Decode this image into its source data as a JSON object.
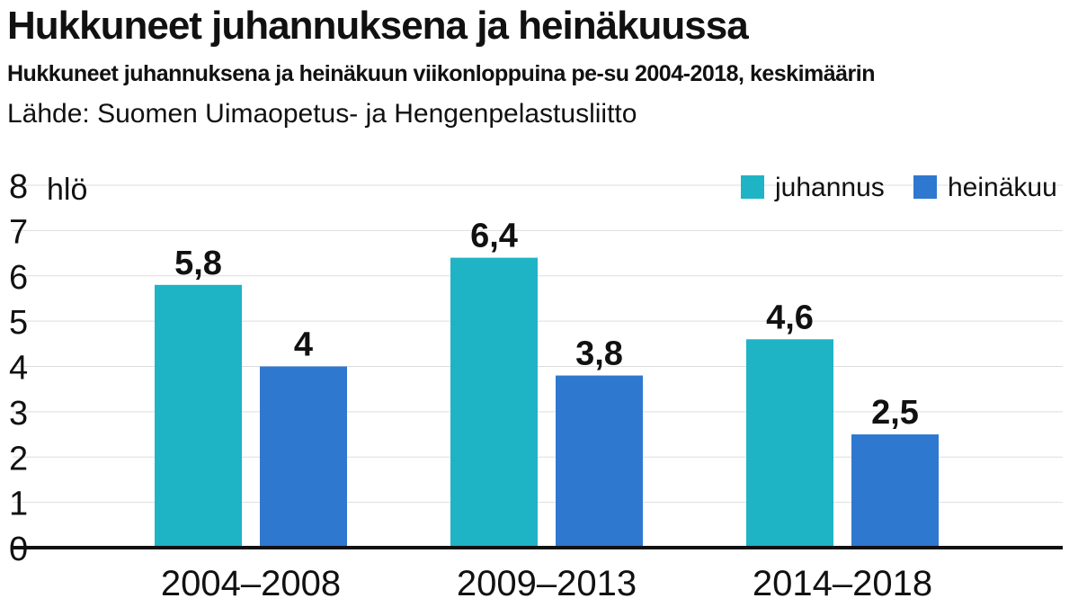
{
  "chart_data": {
    "type": "bar",
    "title": "Hukkuneet juhannuksena ja heinäkuussa",
    "subtitle": "Hukkuneet juhannuksena ja heinäkuun viikonloppuina pe-su 2004-2018, keskimäärin",
    "source": "Lähde: Suomen Uimaopetus- ja Hengenpelastusliitto",
    "ylabel": "hlö",
    "xlabel": "",
    "ylim": [
      0,
      8
    ],
    "yticks": [
      0,
      1,
      2,
      3,
      4,
      5,
      6,
      7,
      8
    ],
    "categories": [
      "2004–2008",
      "2009–2013",
      "2014–2018"
    ],
    "series": [
      {
        "name": "juhannus",
        "color": "#1fb3c6",
        "values": [
          5.8,
          6.4,
          4.6
        ],
        "labels": [
          "5,8",
          "6,4",
          "4,6"
        ]
      },
      {
        "name": "heinäkuu",
        "color": "#2f78cf",
        "values": [
          4,
          3.8,
          2.5
        ],
        "labels": [
          "4",
          "3,8",
          "2,5"
        ]
      }
    ],
    "grid": true,
    "legend": "top-right"
  }
}
